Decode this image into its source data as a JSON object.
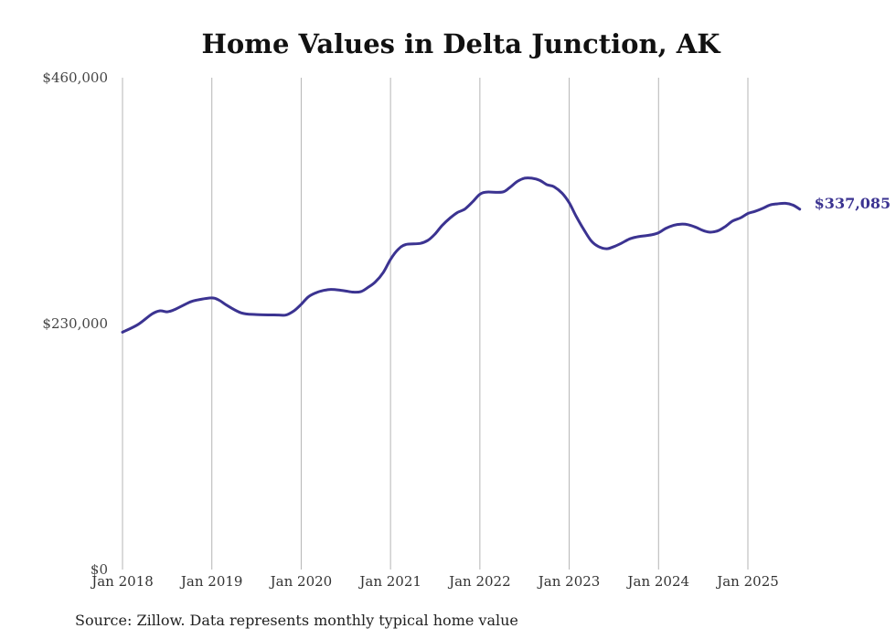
{
  "chart_data": {
    "type": "line",
    "title": "Home Values in Delta Junction, AK",
    "xlabel": "",
    "ylabel": "",
    "ylim": [
      0,
      460000
    ],
    "y_ticks": [
      {
        "value": 0,
        "label": "$0"
      },
      {
        "value": 230000,
        "label": "$230,000"
      },
      {
        "value": 460000,
        "label": "$460,000"
      }
    ],
    "x_ticks": [
      {
        "value": 2018,
        "label": "Jan 2018"
      },
      {
        "value": 2019,
        "label": "Jan 2019"
      },
      {
        "value": 2020,
        "label": "Jan 2020"
      },
      {
        "value": 2021,
        "label": "Jan 2021"
      },
      {
        "value": 2022,
        "label": "Jan 2022"
      },
      {
        "value": 2023,
        "label": "Jan 2023"
      },
      {
        "value": 2024,
        "label": "Jan 2024"
      },
      {
        "value": 2025,
        "label": "Jan 2025"
      }
    ],
    "grid": "vertical",
    "series": [
      {
        "name": "Typical home value",
        "color": "#3b3391",
        "end_label": "$337,085",
        "points": [
          [
            2018.0,
            222000
          ],
          [
            2018.17,
            229000
          ],
          [
            2018.33,
            239000
          ],
          [
            2018.42,
            242000
          ],
          [
            2018.5,
            241000
          ],
          [
            2018.58,
            243000
          ],
          [
            2018.75,
            250000
          ],
          [
            2018.83,
            252000
          ],
          [
            2019.0,
            254000
          ],
          [
            2019.08,
            252000
          ],
          [
            2019.17,
            247000
          ],
          [
            2019.33,
            240000
          ],
          [
            2019.5,
            238500
          ],
          [
            2019.75,
            238000
          ],
          [
            2019.83,
            238000
          ],
          [
            2019.92,
            242000
          ],
          [
            2020.0,
            248000
          ],
          [
            2020.08,
            255000
          ],
          [
            2020.17,
            259000
          ],
          [
            2020.25,
            261000
          ],
          [
            2020.33,
            262000
          ],
          [
            2020.42,
            261500
          ],
          [
            2020.58,
            259500
          ],
          [
            2020.67,
            260000
          ],
          [
            2020.75,
            264000
          ],
          [
            2020.83,
            269000
          ],
          [
            2020.92,
            278000
          ],
          [
            2021.0,
            290000
          ],
          [
            2021.08,
            299000
          ],
          [
            2021.17,
            304000
          ],
          [
            2021.33,
            305000
          ],
          [
            2021.42,
            308000
          ],
          [
            2021.5,
            314000
          ],
          [
            2021.58,
            322000
          ],
          [
            2021.67,
            329000
          ],
          [
            2021.75,
            334000
          ],
          [
            2021.83,
            337000
          ],
          [
            2021.92,
            344000
          ],
          [
            2022.0,
            351000
          ],
          [
            2022.08,
            353000
          ],
          [
            2022.25,
            353000
          ],
          [
            2022.33,
            357000
          ],
          [
            2022.42,
            363000
          ],
          [
            2022.5,
            366000
          ],
          [
            2022.58,
            366000
          ],
          [
            2022.67,
            364000
          ],
          [
            2022.75,
            360000
          ],
          [
            2022.83,
            358000
          ],
          [
            2022.92,
            352000
          ],
          [
            2023.0,
            343000
          ],
          [
            2023.08,
            330000
          ],
          [
            2023.17,
            317000
          ],
          [
            2023.25,
            307000
          ],
          [
            2023.33,
            302000
          ],
          [
            2023.42,
            300000
          ],
          [
            2023.5,
            302000
          ],
          [
            2023.58,
            305000
          ],
          [
            2023.67,
            309000
          ],
          [
            2023.75,
            311000
          ],
          [
            2023.83,
            312000
          ],
          [
            2023.92,
            313000
          ],
          [
            2024.0,
            315000
          ],
          [
            2024.08,
            319000
          ],
          [
            2024.17,
            322000
          ],
          [
            2024.25,
            323000
          ],
          [
            2024.33,
            322500
          ],
          [
            2024.42,
            320000
          ],
          [
            2024.5,
            317000
          ],
          [
            2024.58,
            315500
          ],
          [
            2024.67,
            317000
          ],
          [
            2024.75,
            321000
          ],
          [
            2024.83,
            326000
          ],
          [
            2024.92,
            329000
          ],
          [
            2025.0,
            333000
          ],
          [
            2025.08,
            335000
          ],
          [
            2025.17,
            338000
          ],
          [
            2025.25,
            341000
          ],
          [
            2025.33,
            342000
          ],
          [
            2025.42,
            342500
          ],
          [
            2025.5,
            341000
          ],
          [
            2025.58,
            337085
          ]
        ]
      }
    ]
  },
  "footer": {
    "source": "Source: Zillow. Data represents monthly typical home value"
  }
}
